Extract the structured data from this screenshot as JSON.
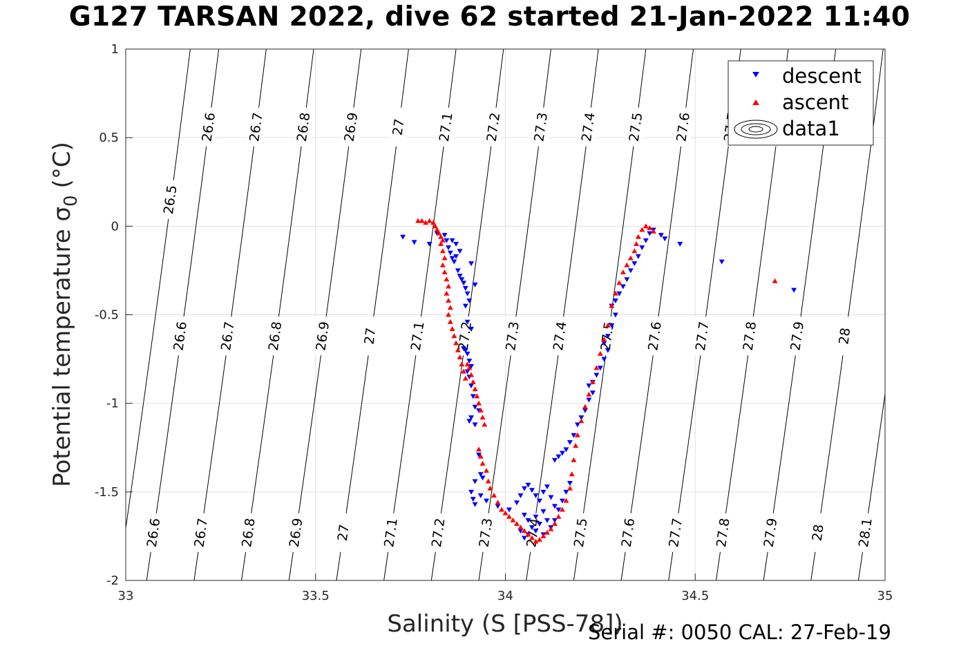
{
  "title": "G127 TARSAN 2022, dive 62 started 21-Jan-2022 11:40",
  "footer": "Serial #: 0050  CAL: 27-Feb-19",
  "chart_data": {
    "type": "scatter",
    "xlabel": "Salinity (S [PSS-78])",
    "ylabel": "Potential temperature σ₀ (°C)",
    "ylabel_main": "Potential temperature σ",
    "ylabel_sub": "0",
    "ylabel_unit": "(°C)",
    "xlim": [
      33,
      35
    ],
    "ylim": [
      -2,
      1
    ],
    "xticks": [
      33,
      33.5,
      34,
      34.5,
      35
    ],
    "xtick_labels": [
      "33",
      "33.5",
      "34",
      "34.5",
      "35"
    ],
    "yticks": [
      -2,
      -1.5,
      -1,
      -0.5,
      0,
      0.5,
      1
    ],
    "ytick_labels": [
      "-2",
      "-1.5",
      "-1",
      "-0.5",
      "0",
      "0.5",
      "1"
    ],
    "grid": true,
    "legend_position": "top-right",
    "colors": {
      "descent": "#0000ff",
      "ascent": "#ff0000",
      "contour": "#000000",
      "grid": "#e0e0e0"
    },
    "contour_levels": [
      26.5,
      26.6,
      26.7,
      26.8,
      26.9,
      27,
      27.1,
      27.2,
      27.3,
      27.4,
      27.5,
      27.6,
      27.7,
      27.8,
      27.9,
      28,
      28.1
    ],
    "contour_level_labels": [
      "26.5",
      "26.6",
      "26.7",
      "26.8",
      "26.9",
      "27",
      "27.1",
      "27.2",
      "27.3",
      "27.4",
      "27.5",
      "27.6",
      "27.7",
      "27.8",
      "27.9",
      "28",
      "28.1"
    ],
    "contour_lines": [
      {
        "level": 26.5,
        "x_at_bottom": 32.98,
        "x_at_top": 33.17
      },
      {
        "level": 26.6,
        "x_at_bottom": 33.055,
        "x_at_top": 33.245
      },
      {
        "level": 26.7,
        "x_at_bottom": 33.18,
        "x_at_top": 33.37
      },
      {
        "level": 26.8,
        "x_at_bottom": 33.305,
        "x_at_top": 33.495
      },
      {
        "level": 26.9,
        "x_at_bottom": 33.43,
        "x_at_top": 33.62
      },
      {
        "level": 27,
        "x_at_bottom": 33.555,
        "x_at_top": 33.745
      },
      {
        "level": 27.1,
        "x_at_bottom": 33.68,
        "x_at_top": 33.87
      },
      {
        "level": 27.2,
        "x_at_bottom": 33.805,
        "x_at_top": 33.995
      },
      {
        "level": 27.3,
        "x_at_bottom": 33.93,
        "x_at_top": 34.12
      },
      {
        "level": 27.4,
        "x_at_bottom": 34.055,
        "x_at_top": 34.245
      },
      {
        "level": 27.5,
        "x_at_bottom": 34.18,
        "x_at_top": 34.37
      },
      {
        "level": 27.6,
        "x_at_bottom": 34.305,
        "x_at_top": 34.495
      },
      {
        "level": 27.7,
        "x_at_bottom": 34.43,
        "x_at_top": 34.62
      },
      {
        "level": 27.8,
        "x_at_bottom": 34.555,
        "x_at_top": 34.745
      },
      {
        "level": 27.9,
        "x_at_bottom": 34.68,
        "x_at_top": 34.87
      },
      {
        "level": 28,
        "x_at_bottom": 34.805,
        "x_at_top": 34.995
      },
      {
        "level": 28.1,
        "x_at_bottom": 34.93,
        "x_at_top": 35.12
      }
    ],
    "series": [
      {
        "name": "descent",
        "marker": "triangle-down",
        "points": [
          [
            33.73,
            -0.06
          ],
          [
            33.76,
            -0.09
          ],
          [
            33.8,
            -0.1
          ],
          [
            33.82,
            -0.04
          ],
          [
            33.84,
            -0.05
          ],
          [
            33.845,
            -0.08
          ],
          [
            33.85,
            -0.12
          ],
          [
            33.855,
            -0.15
          ],
          [
            33.86,
            -0.18
          ],
          [
            33.865,
            -0.2
          ],
          [
            33.87,
            -0.17
          ],
          [
            33.86,
            -0.08
          ],
          [
            33.87,
            -0.1
          ],
          [
            33.88,
            -0.14
          ],
          [
            33.875,
            -0.25
          ],
          [
            33.88,
            -0.28
          ],
          [
            33.885,
            -0.3
          ],
          [
            33.89,
            -0.32
          ],
          [
            33.895,
            -0.35
          ],
          [
            33.9,
            -0.38
          ],
          [
            33.905,
            -0.42
          ],
          [
            33.91,
            -0.21
          ],
          [
            33.92,
            -0.33
          ],
          [
            33.895,
            -0.45
          ],
          [
            33.9,
            -0.54
          ],
          [
            33.91,
            -0.58
          ],
          [
            33.89,
            -0.69
          ],
          [
            33.895,
            -0.7
          ],
          [
            33.9,
            -0.72
          ],
          [
            33.905,
            -0.76
          ],
          [
            33.91,
            -0.79
          ],
          [
            33.9,
            -0.82
          ],
          [
            33.905,
            -0.85
          ],
          [
            33.91,
            -0.9
          ],
          [
            33.915,
            -0.96
          ],
          [
            33.92,
            -1.02
          ],
          [
            33.93,
            -1.04
          ],
          [
            33.91,
            -1.08
          ],
          [
            33.905,
            -1.1
          ],
          [
            33.92,
            -1.12
          ],
          [
            33.93,
            -1.29
          ],
          [
            33.935,
            -1.4
          ],
          [
            33.94,
            -1.42
          ],
          [
            33.92,
            -1.44
          ],
          [
            33.91,
            -1.5
          ],
          [
            33.915,
            -1.54
          ],
          [
            33.92,
            -1.57
          ],
          [
            33.935,
            -1.52
          ],
          [
            33.95,
            -1.55
          ],
          [
            33.98,
            -1.58
          ],
          [
            34.01,
            -1.6
          ],
          [
            34.03,
            -1.56
          ],
          [
            34.04,
            -1.52
          ],
          [
            34.05,
            -1.48
          ],
          [
            34.06,
            -1.46
          ],
          [
            34.07,
            -1.49
          ],
          [
            34.08,
            -1.52
          ],
          [
            34.09,
            -1.55
          ],
          [
            34.1,
            -1.5
          ],
          [
            34.11,
            -1.47
          ],
          [
            34.12,
            -1.53
          ],
          [
            34.13,
            -1.58
          ],
          [
            34.05,
            -1.63
          ],
          [
            34.06,
            -1.66
          ],
          [
            34.07,
            -1.7
          ],
          [
            34.08,
            -1.64
          ],
          [
            34.09,
            -1.68
          ],
          [
            34.1,
            -1.61
          ],
          [
            34.11,
            -1.66
          ],
          [
            34.04,
            -1.72
          ],
          [
            34.05,
            -1.76
          ],
          [
            34.06,
            -1.74
          ],
          [
            34.08,
            -1.72
          ],
          [
            34.1,
            -1.74
          ],
          [
            34.12,
            -1.7
          ],
          [
            34.13,
            -1.66
          ],
          [
            34.14,
            -1.6
          ],
          [
            34.15,
            -1.55
          ],
          [
            34.16,
            -1.5
          ],
          [
            34.17,
            -1.45
          ],
          [
            34.13,
            -1.32
          ],
          [
            34.14,
            -1.3
          ],
          [
            34.15,
            -1.28
          ],
          [
            34.16,
            -1.26
          ],
          [
            34.17,
            -1.22
          ],
          [
            34.18,
            -1.18
          ],
          [
            34.19,
            -1.12
          ],
          [
            34.2,
            -1.08
          ],
          [
            34.21,
            -1.04
          ],
          [
            34.22,
            -0.98
          ],
          [
            34.23,
            -0.94
          ],
          [
            34.22,
            -0.9
          ],
          [
            34.23,
            -0.88
          ],
          [
            34.24,
            -0.84
          ],
          [
            34.25,
            -0.8
          ],
          [
            34.26,
            -0.75
          ],
          [
            34.27,
            -0.7
          ],
          [
            34.26,
            -0.66
          ],
          [
            34.27,
            -0.62
          ],
          [
            34.28,
            -0.56
          ],
          [
            34.29,
            -0.5
          ],
          [
            34.28,
            -0.45
          ],
          [
            34.29,
            -0.42
          ],
          [
            34.3,
            -0.38
          ],
          [
            34.31,
            -0.34
          ],
          [
            34.32,
            -0.3
          ],
          [
            34.33,
            -0.25
          ],
          [
            34.34,
            -0.21
          ],
          [
            34.35,
            -0.17
          ],
          [
            34.36,
            -0.12
          ],
          [
            34.37,
            -0.08
          ],
          [
            34.38,
            -0.04
          ],
          [
            34.39,
            -0.02
          ],
          [
            34.41,
            -0.05
          ],
          [
            34.42,
            -0.07
          ],
          [
            34.46,
            -0.1
          ],
          [
            34.57,
            -0.2
          ],
          [
            34.76,
            -0.36
          ]
        ]
      },
      {
        "name": "ascent",
        "marker": "triangle-up",
        "points": [
          [
            33.77,
            0.03
          ],
          [
            33.78,
            0.03
          ],
          [
            33.79,
            0.02
          ],
          [
            33.8,
            0.03
          ],
          [
            33.81,
            0.02
          ],
          [
            33.815,
            0.0
          ],
          [
            33.82,
            -0.02
          ],
          [
            33.825,
            -0.04
          ],
          [
            33.83,
            -0.06
          ],
          [
            33.835,
            -0.08
          ],
          [
            33.83,
            -0.1
          ],
          [
            33.835,
            -0.14
          ],
          [
            33.84,
            -0.18
          ],
          [
            33.835,
            -0.22
          ],
          [
            33.84,
            -0.26
          ],
          [
            33.845,
            -0.3
          ],
          [
            33.85,
            -0.34
          ],
          [
            33.845,
            -0.38
          ],
          [
            33.85,
            -0.42
          ],
          [
            33.855,
            -0.46
          ],
          [
            33.85,
            -0.5
          ],
          [
            33.855,
            -0.54
          ],
          [
            33.86,
            -0.58
          ],
          [
            33.865,
            -0.62
          ],
          [
            33.87,
            -0.66
          ],
          [
            33.875,
            -0.7
          ],
          [
            33.88,
            -0.74
          ],
          [
            33.885,
            -0.78
          ],
          [
            33.89,
            -0.82
          ],
          [
            33.895,
            -0.86
          ],
          [
            33.9,
            -0.78
          ],
          [
            33.905,
            -0.8
          ],
          [
            33.91,
            -0.84
          ],
          [
            33.915,
            -0.88
          ],
          [
            33.92,
            -0.92
          ],
          [
            33.925,
            -0.96
          ],
          [
            33.93,
            -1.0
          ],
          [
            33.935,
            -1.04
          ],
          [
            33.94,
            -1.08
          ],
          [
            33.945,
            -1.12
          ],
          [
            33.93,
            -1.26
          ],
          [
            33.935,
            -1.3
          ],
          [
            33.94,
            -1.34
          ],
          [
            33.95,
            -1.38
          ],
          [
            33.955,
            -1.44
          ],
          [
            33.96,
            -1.48
          ],
          [
            33.97,
            -1.52
          ],
          [
            33.98,
            -1.56
          ],
          [
            33.99,
            -1.6
          ],
          [
            34.0,
            -1.62
          ],
          [
            34.01,
            -1.64
          ],
          [
            34.02,
            -1.66
          ],
          [
            34.03,
            -1.68
          ],
          [
            34.04,
            -1.7
          ],
          [
            34.05,
            -1.72
          ],
          [
            34.06,
            -1.74
          ],
          [
            34.07,
            -1.76
          ],
          [
            34.08,
            -1.78
          ],
          [
            34.09,
            -1.77
          ],
          [
            34.1,
            -1.75
          ],
          [
            34.11,
            -1.73
          ],
          [
            34.12,
            -1.71
          ],
          [
            34.13,
            -1.68
          ],
          [
            34.14,
            -1.64
          ],
          [
            34.15,
            -1.6
          ],
          [
            34.16,
            -1.55
          ],
          [
            34.17,
            -1.48
          ],
          [
            34.175,
            -1.4
          ],
          [
            34.18,
            -1.32
          ],
          [
            34.185,
            -1.24
          ],
          [
            34.19,
            -1.18
          ],
          [
            34.2,
            -1.1
          ],
          [
            34.21,
            -1.02
          ],
          [
            34.22,
            -0.95
          ],
          [
            34.23,
            -0.88
          ],
          [
            34.24,
            -0.8
          ],
          [
            34.25,
            -0.72
          ],
          [
            34.26,
            -0.64
          ],
          [
            34.27,
            -0.56
          ],
          [
            34.28,
            -0.45
          ],
          [
            34.29,
            -0.38
          ],
          [
            34.3,
            -0.32
          ],
          [
            34.31,
            -0.26
          ],
          [
            34.32,
            -0.22
          ],
          [
            34.33,
            -0.18
          ],
          [
            34.34,
            -0.14
          ],
          [
            34.345,
            -0.1
          ],
          [
            34.35,
            -0.06
          ],
          [
            34.36,
            -0.02
          ],
          [
            34.37,
            0.0
          ],
          [
            34.38,
            -0.01
          ],
          [
            34.39,
            -0.03
          ],
          [
            34.71,
            -0.31
          ]
        ]
      }
    ],
    "legend": {
      "entries": [
        "descent",
        "ascent",
        "data1"
      ]
    }
  }
}
